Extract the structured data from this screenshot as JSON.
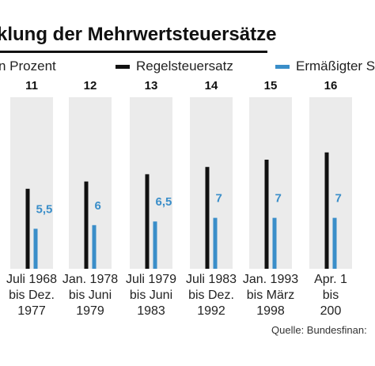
{
  "title": "klung der Mehrwertsteuersätze",
  "legend": {
    "unit_label": "n Prozent",
    "items": [
      {
        "label": "Regelsteuersatz",
        "color": "#111111"
      },
      {
        "label": "Ermäßigter S",
        "color": "#3a8ec9"
      }
    ]
  },
  "source": "Quelle: Bundesfinan:",
  "chart_data": {
    "type": "bar",
    "categories": [
      [
        "Juli 1968",
        "bis Dez.",
        "1977"
      ],
      [
        "Jan. 1978",
        "bis Juni",
        "1979"
      ],
      [
        "Juli 1979",
        "bis Juni",
        "1983"
      ],
      [
        "Juli 1983",
        "bis Dez.",
        "1992"
      ],
      [
        "Jan. 1993",
        "bis März",
        "1998"
      ],
      [
        "Apr. 1",
        "bis",
        "200"
      ]
    ],
    "series": [
      {
        "name": "Regelsteuersatz",
        "values": [
          11,
          12,
          13,
          14,
          15,
          16
        ],
        "labels": [
          "11",
          "12",
          "13",
          "14",
          "15",
          "16"
        ],
        "color": "#111111"
      },
      {
        "name": "Ermäßigter S",
        "values": [
          5.5,
          6,
          6.5,
          7,
          7,
          7
        ],
        "labels": [
          "5,5",
          "6",
          "6,5",
          "7",
          "7",
          "7"
        ],
        "color": "#3a8ec9"
      }
    ],
    "ylim": [
      0,
      16
    ],
    "grid": false
  }
}
